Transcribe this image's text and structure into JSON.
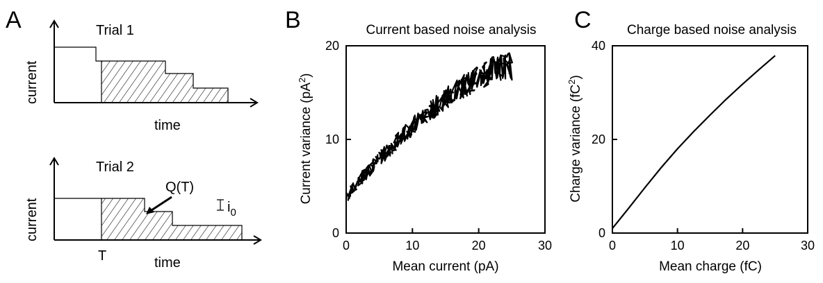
{
  "panel_a": {
    "letter": "A",
    "trial1": {
      "title": "Trial 1",
      "ylabel": "current",
      "xlabel": "time"
    },
    "trial2": {
      "title": "Trial 2",
      "ylabel": "current",
      "xlabel": "time",
      "annotation_q": "Q(T)",
      "annotation_i": "i",
      "annotation_i_sub": "0",
      "tick_t": "T"
    }
  },
  "chart_data": [
    {
      "panel": "B",
      "type": "line",
      "title": "Current based noise analysis",
      "xlabel": "Mean current (pA)",
      "ylabel": "Current variance (pA",
      "ylabel_sup": "2",
      "ylabel_end": ")",
      "xlim": [
        0,
        30
      ],
      "ylim": [
        0,
        20
      ],
      "xticks": [
        0,
        10,
        20,
        30
      ],
      "yticks": [
        0,
        10,
        20
      ],
      "noisy": true,
      "x_end": 25,
      "series": [
        {
          "x": [
            0,
            2,
            4,
            6,
            8,
            10,
            12,
            14,
            16,
            18,
            20,
            22,
            24,
            25
          ],
          "y": [
            3.8,
            5.6,
            7.2,
            8.6,
            10.0,
            11.4,
            12.6,
            13.8,
            14.9,
            15.8,
            16.6,
            17.4,
            17.9,
            17.8
          ]
        }
      ]
    },
    {
      "panel": "C",
      "type": "line",
      "title": "Charge based noise analysis",
      "xlabel": "Mean charge (fC)",
      "ylabel": "Charge variance (fC",
      "ylabel_sup": "2",
      "ylabel_end": ")",
      "xlim": [
        0,
        30
      ],
      "ylim": [
        0,
        40
      ],
      "xticks": [
        0,
        10,
        20,
        30
      ],
      "yticks": [
        0,
        20,
        40
      ],
      "noisy": false,
      "series": [
        {
          "x": [
            0,
            2.5,
            5,
            7.5,
            10,
            12.5,
            15,
            17.5,
            20,
            22.5,
            25
          ],
          "y": [
            1.0,
            5.3,
            9.7,
            14.0,
            18.0,
            21.7,
            25.2,
            28.6,
            31.8,
            34.9,
            37.9
          ]
        }
      ]
    }
  ]
}
